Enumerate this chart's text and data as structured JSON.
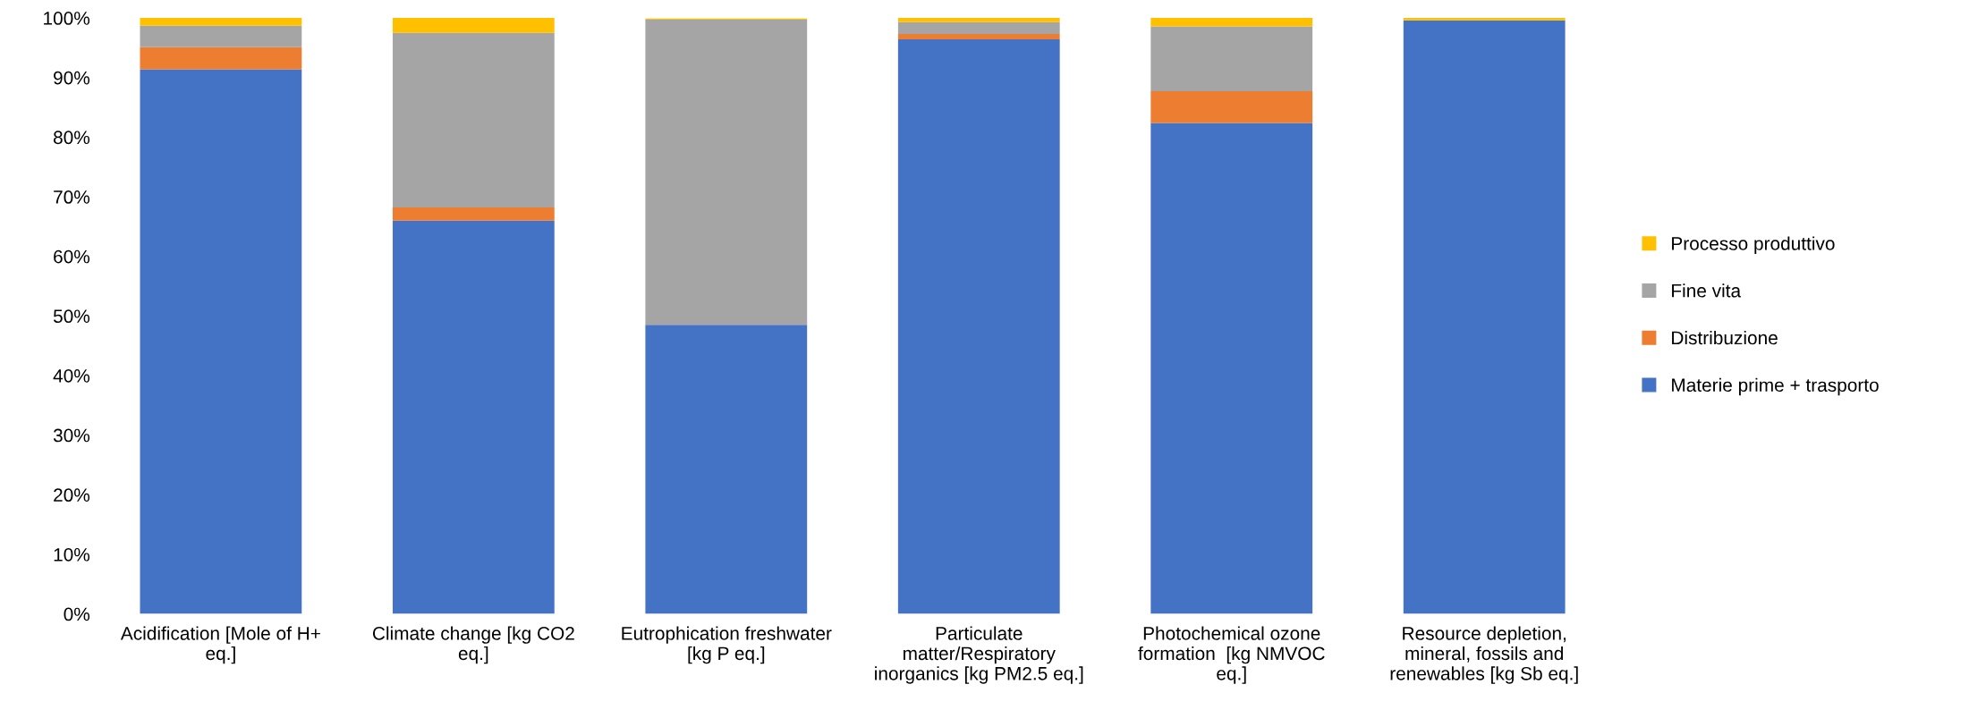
{
  "chart_data": {
    "type": "bar",
    "stacked": true,
    "categories": [
      "Acidification [Mole of H+\neq.]",
      "Climate change [kg CO2\neq.]",
      "Eutrophication freshwater\n[kg P eq.]",
      "Particulate\nmatter/Respiratory\ninorganics [kg PM2.5 eq.]",
      "Photochemical ozone\nformation  [kg NMVOC\neq.]",
      "Resource depletion,\nmineral, fossils and\nrenewables [kg Sb eq.]"
    ],
    "series": [
      {
        "name": "Materie prime + trasporto",
        "color": "#4472c4",
        "values": [
          91.4,
          66.0,
          48.5,
          96.4,
          82.4,
          99.6
        ]
      },
      {
        "name": "Distribuzione",
        "color": "#ed7d31",
        "values": [
          3.7,
          2.2,
          null,
          0.9,
          5.3,
          0
        ]
      },
      {
        "name": "Fine vita",
        "color": "#a5a5a5",
        "values": [
          3.6,
          29.3,
          51.2,
          2.0,
          10.9,
          0
        ]
      },
      {
        "name": "Processo produttivo",
        "color": "#ffc000",
        "values": [
          1.3,
          2.5,
          0.2,
          0.7,
          1.4,
          0.4
        ]
      }
    ],
    "ylim": [
      0,
      100
    ],
    "yticks": [
      {
        "value": 0,
        "label": "0%"
      },
      {
        "value": 10,
        "label": "10%"
      },
      {
        "value": 20,
        "label": "20%"
      },
      {
        "value": 30,
        "label": "30%"
      },
      {
        "value": 40,
        "label": "40%"
      },
      {
        "value": 50,
        "label": "50%"
      },
      {
        "value": 60,
        "label": "60%"
      },
      {
        "value": 70,
        "label": "70%"
      },
      {
        "value": 80,
        "label": "80%"
      },
      {
        "value": 90,
        "label": "90%"
      },
      {
        "value": 100,
        "label": "100%"
      }
    ],
    "grid": false,
    "legend": "right"
  }
}
